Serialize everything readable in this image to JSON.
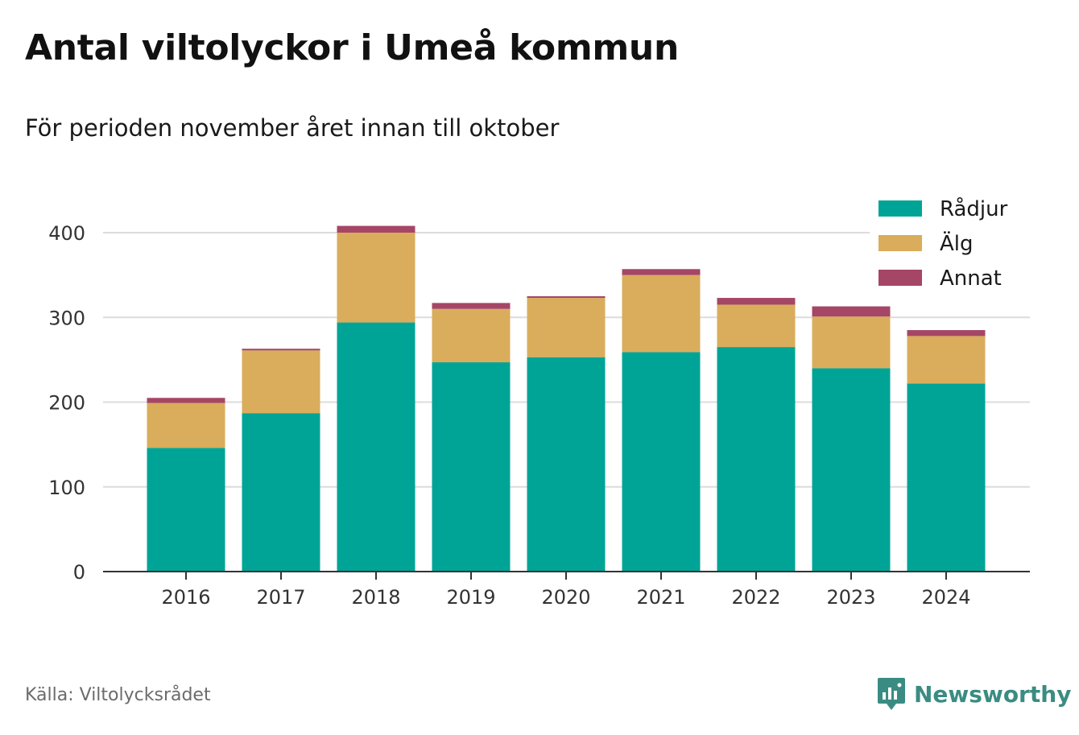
{
  "header": {
    "title": "Antal viltolyckor i Umeå kommun",
    "subtitle": "För perioden november året innan till oktober"
  },
  "footer": {
    "source": "Källa: Viltolycksrådet",
    "brand": "Newsworthy",
    "brand_icon": "newsworthy-logo-icon",
    "brand_color": "#3a8c82"
  },
  "chart_data": {
    "type": "bar",
    "stacked": true,
    "title": "Antal viltolyckor i Umeå kommun",
    "subtitle": "För perioden november året innan till oktober",
    "categories": [
      "2016",
      "2017",
      "2018",
      "2019",
      "2020",
      "2021",
      "2022",
      "2023",
      "2024"
    ],
    "series": [
      {
        "name": "Rådjur",
        "color": "#00a497",
        "values": [
          146,
          187,
          294,
          247,
          253,
          259,
          265,
          240,
          222
        ]
      },
      {
        "name": "Älg",
        "color": "#d9ad5b",
        "values": [
          53,
          74,
          106,
          63,
          70,
          91,
          50,
          61,
          56
        ]
      },
      {
        "name": "Annat",
        "color": "#a64667",
        "values": [
          6,
          2,
          8,
          7,
          2,
          7,
          8,
          12,
          7
        ]
      }
    ],
    "ylim": [
      0,
      420
    ],
    "yticks": [
      0,
      100,
      200,
      300,
      400
    ],
    "grid": true,
    "legend": "top-right"
  }
}
